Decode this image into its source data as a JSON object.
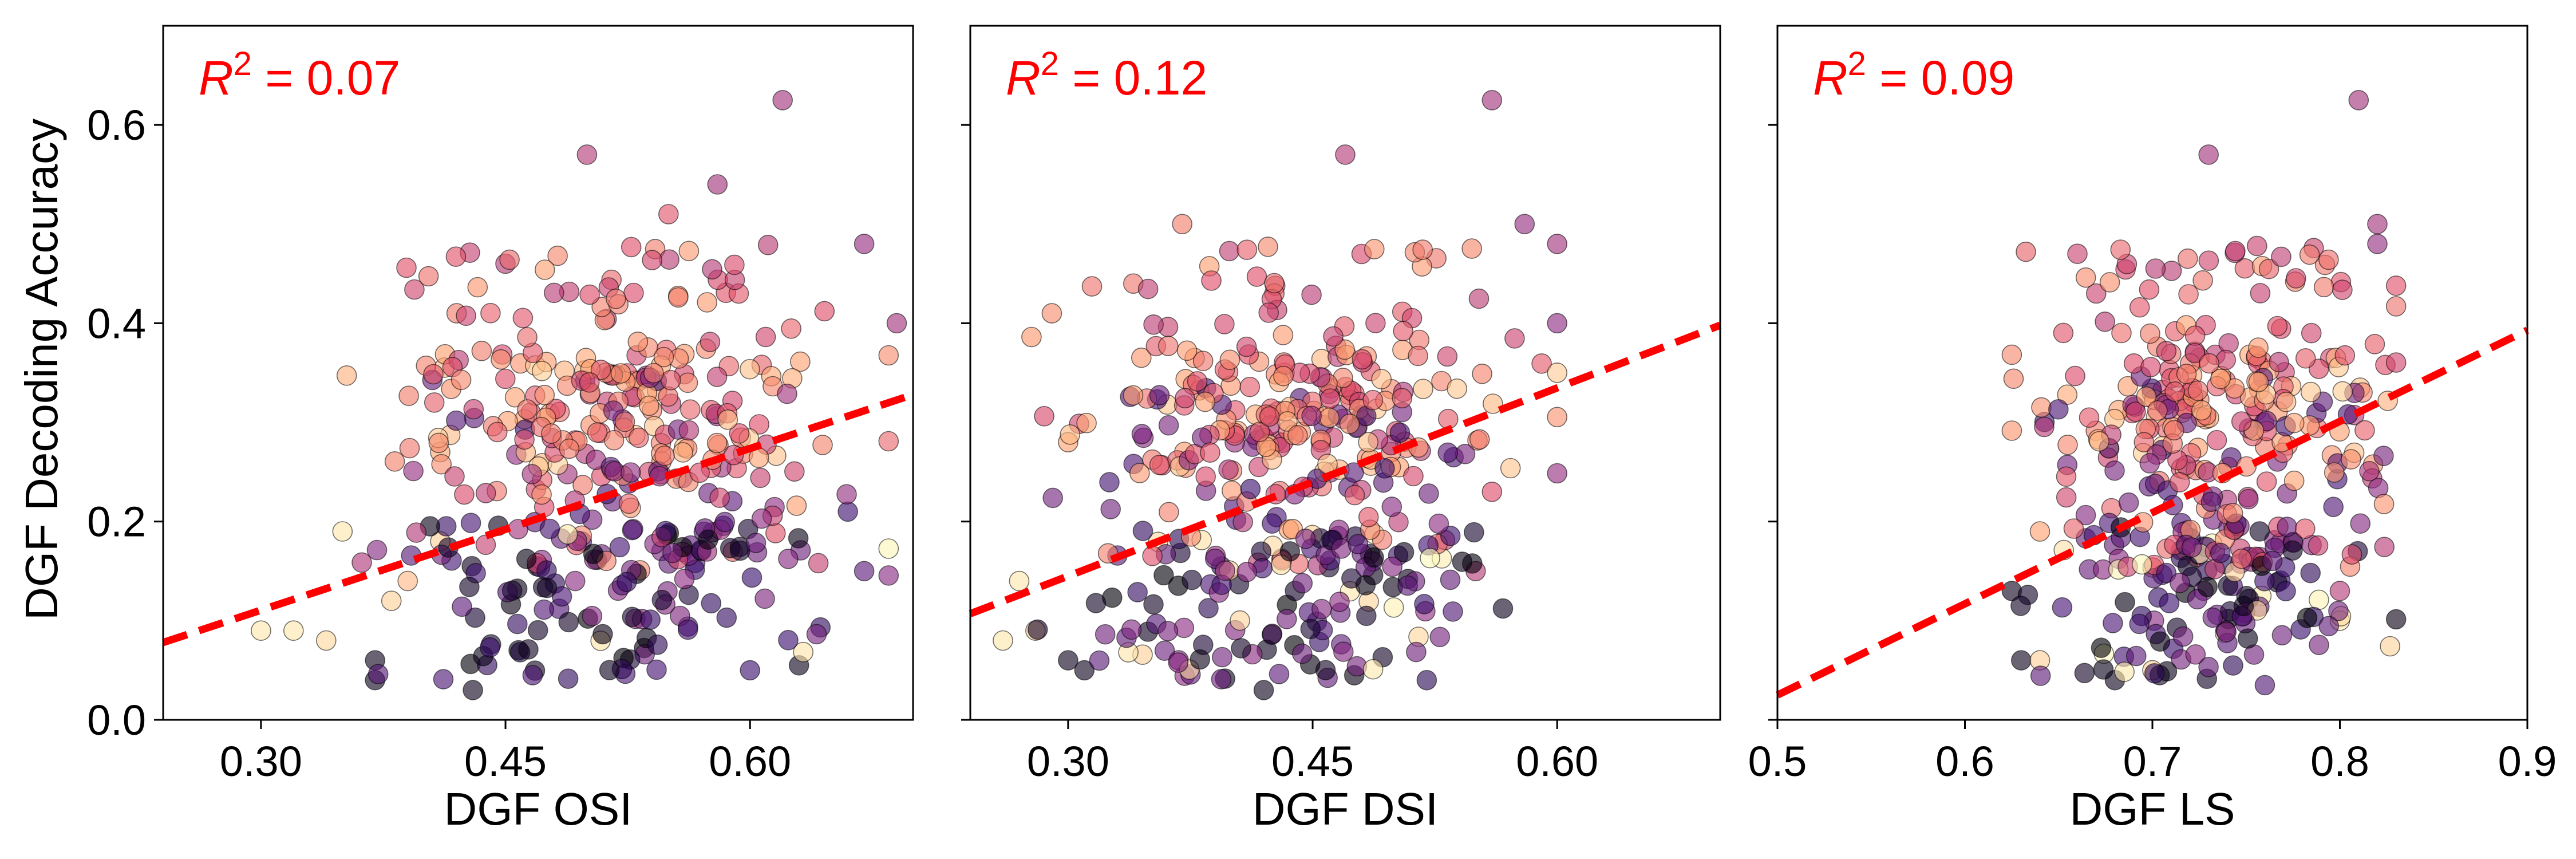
{
  "figure": {
    "ylabel": "DGF Decoding Accuracy"
  },
  "style": {
    "fit_line_color": "#ff0000",
    "annotation_color": "#ff0000",
    "point_edge_color": "#000000",
    "palette": [
      "#000004",
      "#3b0f70",
      "#8c2981",
      "#de4968",
      "#fe9f6d",
      "#fcfdbf"
    ]
  },
  "chart_data": [
    {
      "type": "scatter",
      "id": "osi",
      "xlabel": "DGF OSI",
      "ylabel": "DGF Decoding Accuracy",
      "xlim": [
        0.24,
        0.7
      ],
      "ylim": [
        0.0,
        0.7
      ],
      "xticks": [
        0.3,
        0.45,
        0.6
      ],
      "xtick_labels": [
        "0.30",
        "0.45",
        "0.60"
      ],
      "yticks": [
        0.0,
        0.2,
        0.4,
        0.6
      ],
      "ytick_labels": [
        "0.0",
        "0.2",
        "0.4",
        "0.6"
      ],
      "annotation": {
        "prefix": "R",
        "superscript": "2",
        "rest": " = 0.07"
      },
      "fit": {
        "x": [
          0.24,
          0.7
        ],
        "y": [
          0.078,
          0.328
        ]
      },
      "seed": 11,
      "n_points": 420,
      "cloud": {
        "x_mean": 0.515,
        "x_sd": 0.065,
        "x_min": 0.3,
        "x_max": 0.685
      },
      "points": [
        [
          0.3,
          0.09,
          0.95
        ],
        [
          0.32,
          0.09,
          0.95
        ],
        [
          0.34,
          0.08,
          0.92
        ],
        [
          0.35,
          0.19,
          0.95
        ],
        [
          0.38,
          0.12,
          0.9
        ],
        [
          0.37,
          0.06,
          0.05
        ],
        [
          0.37,
          0.04,
          0.05
        ],
        [
          0.39,
          0.14,
          0.85
        ],
        [
          0.41,
          0.27,
          0.82
        ],
        [
          0.42,
          0.41,
          0.72
        ],
        [
          0.41,
          0.18,
          0.9
        ],
        [
          0.5,
          0.57,
          0.5
        ],
        [
          0.62,
          0.625,
          0.45
        ],
        [
          0.55,
          0.51,
          0.62
        ],
        [
          0.58,
          0.54,
          0.45
        ],
        [
          0.69,
          0.4,
          0.45
        ],
        [
          0.67,
          0.48,
          0.42
        ],
        [
          0.66,
          0.21,
          0.2
        ],
        [
          0.67,
          0.15,
          0.28
        ],
        [
          0.63,
          0.055,
          0.05
        ],
        [
          0.6,
          0.05,
          0.2
        ],
        [
          0.43,
          0.03,
          0.05
        ],
        [
          0.45,
          0.46,
          0.5
        ]
      ]
    },
    {
      "type": "scatter",
      "id": "dsi",
      "xlabel": "DGF DSI",
      "ylabel": "",
      "xlim": [
        0.24,
        0.7
      ],
      "ylim": [
        0.0,
        0.7
      ],
      "xticks": [
        0.3,
        0.45,
        0.6
      ],
      "xtick_labels": [
        "0.30",
        "0.45",
        "0.60"
      ],
      "yticks": [
        0.0,
        0.2,
        0.4,
        0.6
      ],
      "ytick_labels": [
        "",
        "",
        "",
        ""
      ],
      "annotation": {
        "prefix": "R",
        "superscript": "2",
        "rest": " = 0.12"
      },
      "fit": {
        "x": [
          0.24,
          0.7
        ],
        "y": [
          0.107,
          0.398
        ]
      },
      "seed": 23,
      "n_points": 420,
      "cloud": {
        "x_mean": 0.44,
        "x_sd": 0.062,
        "x_min": 0.26,
        "x_max": 0.6
      },
      "points": [
        [
          0.26,
          0.08,
          0.95
        ],
        [
          0.27,
          0.14,
          0.95
        ],
        [
          0.28,
          0.09,
          0.9
        ],
        [
          0.29,
          0.41,
          0.75
        ],
        [
          0.3,
          0.28,
          0.8
        ],
        [
          0.3,
          0.06,
          0.05
        ],
        [
          0.31,
          0.05,
          0.05
        ],
        [
          0.34,
          0.44,
          0.7
        ],
        [
          0.37,
          0.5,
          0.72
        ],
        [
          0.47,
          0.57,
          0.5
        ],
        [
          0.56,
          0.625,
          0.45
        ],
        [
          0.58,
          0.5,
          0.42
        ],
        [
          0.6,
          0.48,
          0.45
        ],
        [
          0.6,
          0.4,
          0.4
        ],
        [
          0.55,
          0.15,
          0.5
        ],
        [
          0.56,
          0.23,
          0.6
        ],
        [
          0.52,
          0.04,
          0.15
        ],
        [
          0.42,
          0.03,
          0.05
        ]
      ]
    },
    {
      "type": "scatter",
      "id": "ls",
      "xlabel": "DGF LS",
      "ylabel": "",
      "xlim": [
        0.5,
        0.9
      ],
      "ylim": [
        0.0,
        0.7
      ],
      "xticks": [
        0.5,
        0.6,
        0.7,
        0.8,
        0.9
      ],
      "xtick_labels": [
        "0.5",
        "0.6",
        "0.7",
        "0.8",
        "0.9"
      ],
      "yticks": [
        0.0,
        0.2,
        0.4,
        0.6
      ],
      "ytick_labels": [
        "",
        "",
        "",
        ""
      ],
      "annotation": {
        "prefix": "R",
        "superscript": "2",
        "rest": " = 0.09"
      },
      "fit": {
        "x": [
          0.5,
          0.9
        ],
        "y": [
          0.025,
          0.393
        ]
      },
      "seed": 37,
      "n_points": 420,
      "cloud": {
        "x_mean": 0.735,
        "x_sd": 0.045,
        "x_min": 0.625,
        "x_max": 0.83
      },
      "points": [
        [
          0.625,
          0.13,
          0.05
        ],
        [
          0.63,
          0.06,
          0.05
        ],
        [
          0.64,
          0.06,
          0.9
        ],
        [
          0.64,
          0.19,
          0.8
        ],
        [
          0.66,
          0.47,
          0.55
        ],
        [
          0.67,
          0.43,
          0.55
        ],
        [
          0.73,
          0.57,
          0.45
        ],
        [
          0.81,
          0.625,
          0.45
        ],
        [
          0.82,
          0.5,
          0.45
        ],
        [
          0.82,
          0.48,
          0.42
        ],
        [
          0.8,
          0.13,
          0.5
        ],
        [
          0.8,
          0.1,
          0.95
        ],
        [
          0.76,
          0.035,
          0.25
        ],
        [
          0.68,
          0.04,
          0.05
        ],
        [
          0.7,
          0.05,
          0.9
        ]
      ]
    }
  ]
}
